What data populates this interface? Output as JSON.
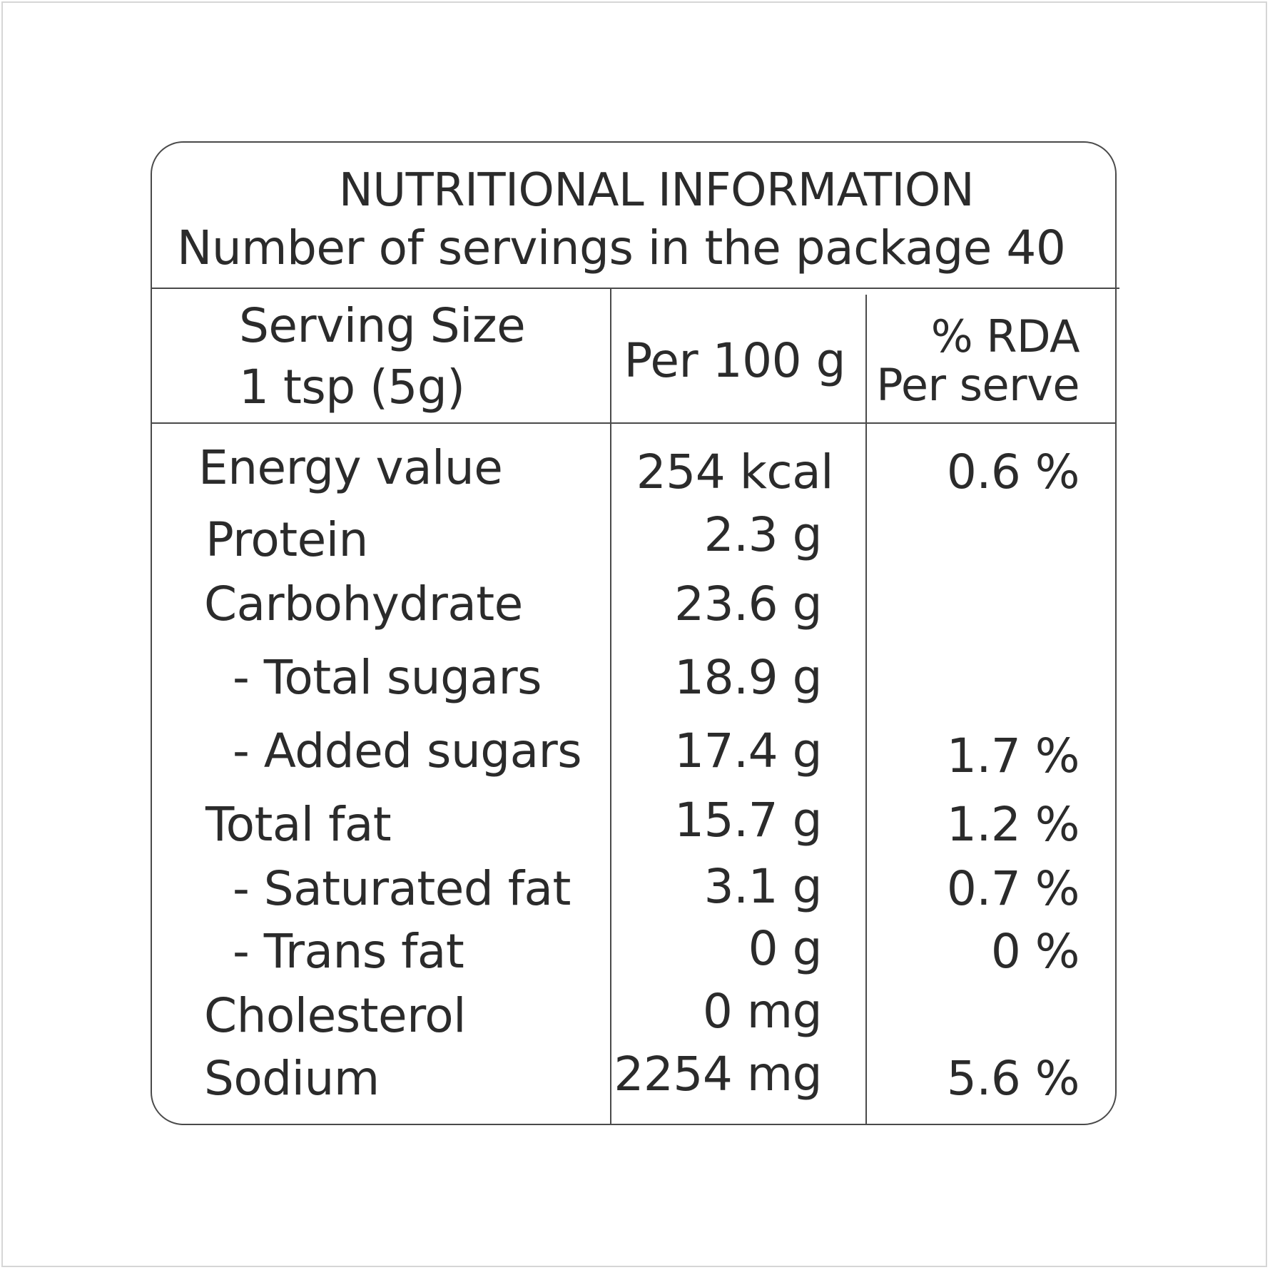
{
  "header": {
    "title": "NUTRITIONAL INFORMATION",
    "servings_line": "Number of servings in the package 40"
  },
  "columns": {
    "serving_size_label": "Serving Size",
    "serving_size_value": "1 tsp (5g)",
    "per_100g": "Per 100 g",
    "rda_line1": "% RDA",
    "rda_line2": "Per serve"
  },
  "rows": [
    {
      "name": "Energy value",
      "per100": "254 kcal",
      "rda": "0.6 %"
    },
    {
      "name": "Protein",
      "per100": "2.3 g",
      "rda": ""
    },
    {
      "name": "Carbohydrate",
      "per100": "23.6 g",
      "rda": ""
    },
    {
      "name": "- Total sugars",
      "per100": "18.9 g",
      "rda": ""
    },
    {
      "name": "- Added sugars",
      "per100": "17.4 g",
      "rda": "1.7 %"
    },
    {
      "name": "Total fat",
      "per100": "15.7 g",
      "rda": "1.2 %"
    },
    {
      "name": "- Saturated fat",
      "per100": "3.1 g",
      "rda": "0.7 %"
    },
    {
      "name": "- Trans fat",
      "per100": "0 g",
      "rda": "0 %"
    },
    {
      "name": "Cholesterol",
      "per100": "0 mg",
      "rda": ""
    },
    {
      "name": "Sodium",
      "per100": "2254 mg",
      "rda": "5.6 %"
    }
  ]
}
